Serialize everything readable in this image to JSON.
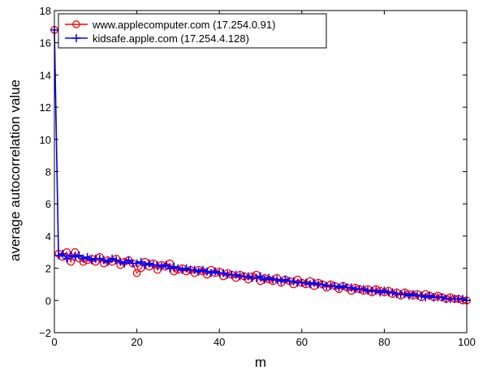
{
  "chart_data": {
    "type": "line",
    "title": "",
    "xlabel": "m",
    "ylabel": "average autocorrelation value",
    "xlim": [
      0,
      100
    ],
    "ylim": [
      -2,
      18
    ],
    "xticks": [
      0,
      20,
      40,
      60,
      80,
      100
    ],
    "yticks": [
      -2,
      0,
      2,
      4,
      6,
      8,
      10,
      12,
      14,
      16,
      18
    ],
    "ytick_labels": [
      "−2",
      "0",
      "2",
      "4",
      "6",
      "8",
      "10",
      "12",
      "14",
      "16",
      "18"
    ],
    "grid": false,
    "legend_position": "top-left",
    "series": [
      {
        "name": "www.applecomputer.com (17.254.0.91)",
        "color": "#ff0000",
        "marker": "circle",
        "x": [
          0,
          1,
          2,
          3,
          4,
          5,
          6,
          7,
          8,
          9,
          10,
          11,
          12,
          13,
          14,
          15,
          16,
          17,
          18,
          19,
          20,
          21,
          22,
          23,
          24,
          25,
          26,
          27,
          28,
          29,
          30,
          31,
          32,
          33,
          34,
          35,
          36,
          37,
          38,
          39,
          40,
          41,
          42,
          43,
          44,
          45,
          46,
          47,
          48,
          49,
          50,
          51,
          52,
          53,
          54,
          55,
          56,
          57,
          58,
          59,
          60,
          61,
          62,
          63,
          64,
          65,
          66,
          67,
          68,
          69,
          70,
          71,
          72,
          73,
          74,
          75,
          76,
          77,
          78,
          79,
          80,
          81,
          82,
          83,
          84,
          85,
          86,
          87,
          88,
          89,
          90,
          91,
          92,
          93,
          94,
          95,
          96,
          97,
          98,
          99,
          100
        ],
        "values": [
          16.8,
          2.9,
          2.7,
          3.0,
          2.4,
          3.0,
          2.6,
          2.4,
          2.5,
          2.6,
          2.4,
          2.7,
          2.3,
          2.5,
          2.4,
          2.6,
          2.2,
          2.4,
          2.5,
          2.3,
          1.7,
          2.0,
          2.4,
          2.1,
          2.3,
          1.9,
          2.2,
          2.1,
          2.3,
          1.8,
          1.9,
          2.0,
          1.8,
          1.9,
          1.7,
          1.9,
          1.8,
          1.6,
          1.9,
          1.7,
          1.8,
          1.5,
          1.7,
          1.6,
          1.4,
          1.6,
          1.5,
          1.3,
          1.5,
          1.6,
          1.2,
          1.4,
          1.3,
          1.2,
          1.4,
          1.1,
          1.3,
          1.2,
          1.0,
          1.3,
          1.1,
          1.0,
          1.2,
          0.9,
          1.1,
          1.0,
          0.8,
          1.0,
          0.9,
          0.7,
          0.9,
          0.8,
          0.6,
          0.8,
          0.7,
          0.6,
          0.7,
          0.5,
          0.7,
          0.6,
          0.5,
          0.6,
          0.4,
          0.5,
          0.3,
          0.5,
          0.4,
          0.3,
          0.4,
          0.2,
          0.4,
          0.3,
          0.2,
          0.3,
          0.2,
          0.1,
          0.2,
          0.1,
          0.1,
          0.0,
          0.0
        ]
      },
      {
        "name": "kidsafe.apple.com (17.254.4.128)",
        "color": "#0000ff",
        "marker": "plus",
        "x": [
          0,
          1,
          2,
          3,
          4,
          5,
          6,
          7,
          8,
          9,
          10,
          11,
          12,
          13,
          14,
          15,
          16,
          17,
          18,
          19,
          20,
          21,
          22,
          23,
          24,
          25,
          26,
          27,
          28,
          29,
          30,
          31,
          32,
          33,
          34,
          35,
          36,
          37,
          38,
          39,
          40,
          41,
          42,
          43,
          44,
          45,
          46,
          47,
          48,
          49,
          50,
          51,
          52,
          53,
          54,
          55,
          56,
          57,
          58,
          59,
          60,
          61,
          62,
          63,
          64,
          65,
          66,
          67,
          68,
          69,
          70,
          71,
          72,
          73,
          74,
          75,
          76,
          77,
          78,
          79,
          80,
          81,
          82,
          83,
          84,
          85,
          86,
          87,
          88,
          89,
          90,
          91,
          92,
          93,
          94,
          95,
          96,
          97,
          98,
          99,
          100
        ],
        "values": [
          16.8,
          2.8,
          2.9,
          2.6,
          2.8,
          2.7,
          2.8,
          2.6,
          2.7,
          2.5,
          2.6,
          2.6,
          2.5,
          2.4,
          2.6,
          2.5,
          2.4,
          2.3,
          2.5,
          2.3,
          2.3,
          2.4,
          2.2,
          2.3,
          2.2,
          2.2,
          2.1,
          2.2,
          2.0,
          2.1,
          2.0,
          1.9,
          2.0,
          1.9,
          1.9,
          1.8,
          1.9,
          1.8,
          1.7,
          1.8,
          1.7,
          1.7,
          1.6,
          1.6,
          1.6,
          1.5,
          1.5,
          1.5,
          1.4,
          1.4,
          1.5,
          1.3,
          1.4,
          1.3,
          1.3,
          1.2,
          1.3,
          1.2,
          1.2,
          1.1,
          1.1,
          1.1,
          1.0,
          1.1,
          1.0,
          1.0,
          0.9,
          0.9,
          0.9,
          0.8,
          0.9,
          0.8,
          0.8,
          0.7,
          0.7,
          0.7,
          0.6,
          0.6,
          0.6,
          0.5,
          0.6,
          0.5,
          0.5,
          0.4,
          0.4,
          0.4,
          0.3,
          0.4,
          0.3,
          0.3,
          0.2,
          0.3,
          0.2,
          0.2,
          0.2,
          0.1,
          0.1,
          0.1,
          0.1,
          0.1,
          0.0
        ]
      }
    ]
  }
}
